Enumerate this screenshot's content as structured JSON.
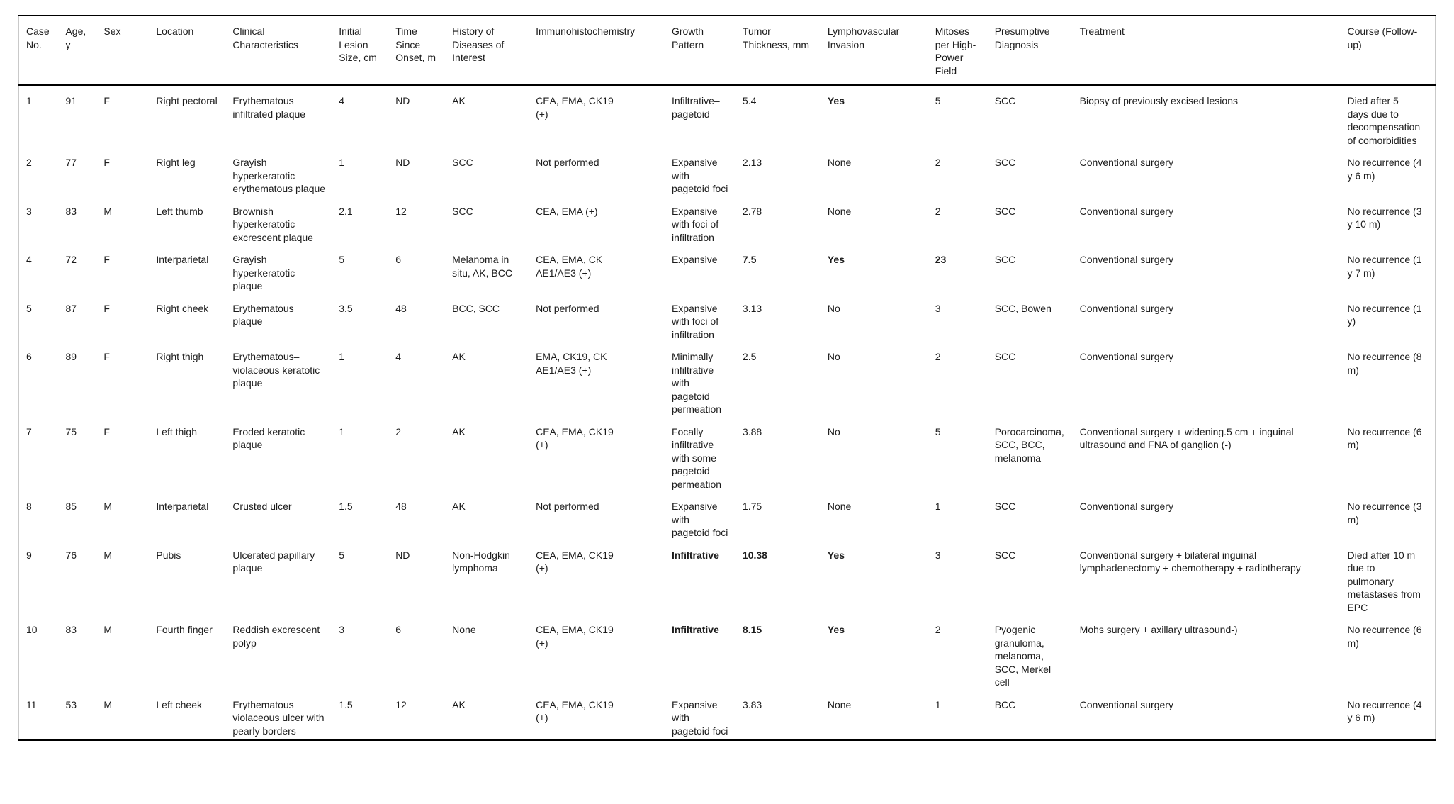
{
  "table": {
    "columns": [
      "Case No.",
      "Age, y",
      "Sex",
      "Location",
      "Clinical Characteristics",
      "Initial Lesion Size, cm",
      "Time Since Onset, m",
      "History of Diseases of Interest",
      "Immunohistochemistry",
      "Growth Pattern",
      "Tumor Thickness, mm",
      "Lymphovascular Invasion",
      "Mitoses per High-Power Field",
      "Presumptive Diagnosis",
      "Treatment",
      "Course (Follow-up)"
    ],
    "rows": [
      {
        "cells": [
          "1",
          "91",
          "F",
          "Right pectoral",
          "Erythematous infiltrated plaque",
          "4",
          "ND",
          "AK",
          "CEA, EMA, CK19\n(+)",
          "Infiltrative–pagetoid",
          "5.4",
          {
            "text": "Yes",
            "bold": true
          },
          "5",
          "SCC",
          "Biopsy of previously excised lesions",
          "Died after 5 days due to decompensation of comorbidities"
        ]
      },
      {
        "cells": [
          "2",
          "77",
          "F",
          "Right leg",
          "Grayish hyperkeratotic erythematous plaque",
          "1",
          "ND",
          "SCC",
          "Not performed",
          "Expansive with pagetoid foci",
          "2.13",
          "None",
          "2",
          "SCC",
          "Conventional surgery",
          "No recurrence (4 y 6 m)"
        ]
      },
      {
        "cells": [
          "3",
          "83",
          "M",
          "Left thumb",
          "Brownish hyperkeratotic excrescent plaque",
          "2.1",
          "12",
          "SCC",
          "CEA, EMA (+)",
          "Expansive with foci of infiltration",
          "2.78",
          "None",
          "2",
          "SCC",
          "Conventional surgery",
          "No recurrence (3 y 10 m)"
        ]
      },
      {
        "cells": [
          "4",
          "72",
          "F",
          "Interparietal",
          "Grayish hyperkeratotic plaque",
          "5",
          "6",
          "Melanoma in situ, AK, BCC",
          "CEA, EMA, CK\nAE1/AE3 (+)",
          "Expansive",
          {
            "text": "7.5",
            "bold": true
          },
          {
            "text": "Yes",
            "bold": true
          },
          {
            "text": "23",
            "bold": true
          },
          "SCC",
          "Conventional surgery",
          "No recurrence (1 y 7 m)"
        ]
      },
      {
        "cells": [
          "5",
          "87",
          "F",
          "Right cheek",
          "Erythematous plaque",
          "3.5",
          "48",
          "BCC, SCC",
          "Not performed",
          "Expansive with foci of infiltration",
          "3.13",
          "No",
          "3",
          "SCC, Bowen",
          "Conventional surgery",
          "No recurrence (1 y)"
        ]
      },
      {
        "cells": [
          "6",
          "89",
          "F",
          "Right thigh",
          "Erythematous–violaceous keratotic plaque",
          "1",
          "4",
          "AK",
          "EMA, CK19, CK\nAE1/AE3 (+)",
          "Minimally infiltrative with pagetoid permeation",
          "2.5",
          "No",
          "2",
          "SCC",
          "Conventional surgery",
          "No recurrence (8 m)"
        ]
      },
      {
        "cells": [
          "7",
          "75",
          "F",
          "Left thigh",
          "Eroded keratotic plaque",
          "1",
          "2",
          "AK",
          "CEA, EMA, CK19\n(+)",
          "Focally infiltrative with some pagetoid permeation",
          "3.88",
          "No",
          "5",
          "Porocarcinoma, SCC, BCC, melanoma",
          "Conventional surgery + widening.5 cm + inguinal ultrasound and FNA of ganglion (-)",
          "No recurrence (6 m)"
        ]
      },
      {
        "cells": [
          "8",
          "85",
          "M",
          "Interparietal",
          "Crusted ulcer",
          "1.5",
          "48",
          "AK",
          "Not performed",
          "Expansive with pagetoid foci",
          "1.75",
          "None",
          "1",
          "SCC",
          "Conventional surgery",
          "No recurrence (3 m)"
        ]
      },
      {
        "cells": [
          "9",
          "76",
          "M",
          "Pubis",
          "Ulcerated papillary plaque",
          "5",
          "ND",
          "Non-Hodgkin lymphoma",
          "CEA, EMA, CK19\n(+)",
          {
            "text": "Infiltrative",
            "bold": true
          },
          {
            "text": "10.38",
            "bold": true
          },
          {
            "text": "Yes",
            "bold": true
          },
          "3",
          "SCC",
          "Conventional surgery + bilateral inguinal lymphadenectomy + chemotherapy + radiotherapy",
          "Died after 10 m due to pulmonary metastases from EPC"
        ]
      },
      {
        "cells": [
          "10",
          "83",
          "M",
          "Fourth finger",
          "Reddish excrescent polyp",
          "3",
          "6",
          "None",
          "CEA, EMA, CK19\n(+)",
          {
            "text": "Infiltrative",
            "bold": true
          },
          {
            "text": "8.15",
            "bold": true
          },
          {
            "text": "Yes",
            "bold": true
          },
          "2",
          "Pyogenic granuloma, melanoma, SCC, Merkel cell",
          "Mohs surgery + axillary ultrasound-)",
          "No recurrence (6 m)"
        ]
      },
      {
        "cells": [
          "11",
          "53",
          "M",
          "Left cheek",
          "Erythematous violaceous ulcer with pearly borders",
          "1.5",
          "12",
          "AK",
          "CEA, EMA, CK19\n(+)",
          "Expansive with pagetoid foci",
          "3.83",
          "None",
          "1",
          "BCC",
          "Conventional surgery",
          "No recurrence (4 y 6 m)"
        ]
      }
    ]
  }
}
